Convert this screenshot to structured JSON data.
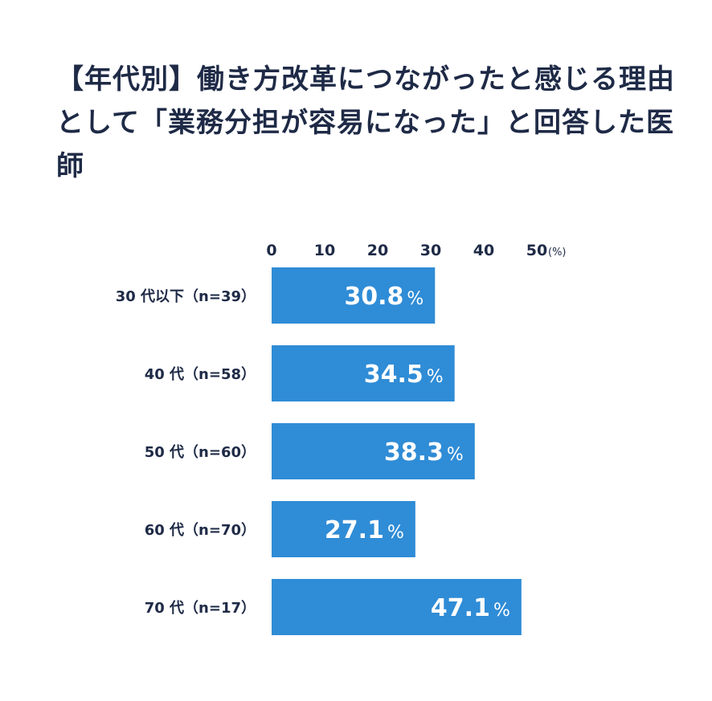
{
  "chart_data": {
    "type": "bar",
    "orientation": "horizontal",
    "title": "【年代別】働き方改革につながったと感じる理由として「業務分担が容易になった」と回答した医師",
    "categories": [
      "30 代以下（n=39）",
      "40 代（n=58）",
      "50 代（n=60）",
      "60 代（n=70）",
      "70 代（n=17）"
    ],
    "values": [
      30.8,
      34.5,
      38.3,
      27.1,
      47.1
    ],
    "value_suffix": "%",
    "xlim": [
      0,
      50
    ],
    "xticks": [
      "0",
      "10",
      "20",
      "30",
      "40",
      "50"
    ],
    "x_unit": "(%)",
    "axis_position": "top",
    "grid": false,
    "colors": {
      "bar": "#2f8cd6",
      "text": "#1e2a46",
      "label": "#ffffff"
    }
  }
}
